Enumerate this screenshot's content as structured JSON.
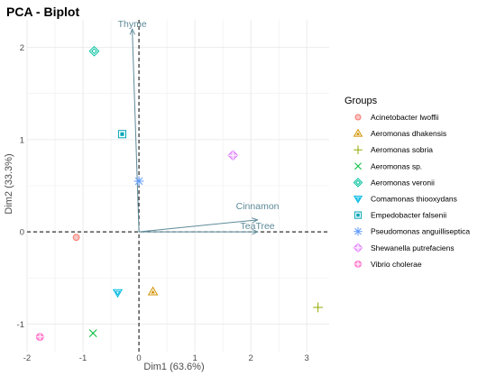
{
  "chart_data": {
    "type": "scatter",
    "title": "PCA - Biplot",
    "xlabel": "Dim1 (63.6%)",
    "ylabel": "Dim2 (33.3%)",
    "xlim": [
      -2.0,
      3.4
    ],
    "ylim": [
      -1.3,
      2.3
    ],
    "x_ticks": [
      -2,
      -1,
      0,
      1,
      2,
      3
    ],
    "y_ticks": [
      -1,
      0,
      1,
      2
    ],
    "grid": true,
    "legend_title": "Groups",
    "legend_position": "right",
    "series": [
      {
        "name": "Acinetobacter lwoffii",
        "color": "#F8766D",
        "shape": "circle-open",
        "points": [
          {
            "x": -1.12,
            "y": -0.06
          }
        ]
      },
      {
        "name": "Aeromonas dhakensis",
        "color": "#D39200",
        "shape": "triangle-dot",
        "points": [
          {
            "x": 0.25,
            "y": -0.65
          }
        ]
      },
      {
        "name": "Aeromonas sobria",
        "color": "#93AA00",
        "shape": "plus",
        "points": [
          {
            "x": 3.2,
            "y": -0.82
          }
        ]
      },
      {
        "name": "Aeromonas sp.",
        "color": "#00BA38",
        "shape": "cross",
        "points": [
          {
            "x": -0.82,
            "y": -1.1
          }
        ]
      },
      {
        "name": "Aeromonas veronii",
        "color": "#00C19F",
        "shape": "diamond-open",
        "points": [
          {
            "x": -0.8,
            "y": 1.96
          }
        ]
      },
      {
        "name": "Comamonas thiooxydans",
        "color": "#00B9E3",
        "shape": "triangle-down",
        "points": [
          {
            "x": -0.38,
            "y": -0.66
          }
        ]
      },
      {
        "name": "Empedobacter falsenii",
        "color": "#00A5B5",
        "shape": "square-cross",
        "points": [
          {
            "x": -0.3,
            "y": 1.06
          }
        ]
      },
      {
        "name": "Pseudomonas anguilliseptica",
        "color": "#619CFF",
        "shape": "asterisk",
        "points": [
          {
            "x": 0.0,
            "y": 0.55
          }
        ]
      },
      {
        "name": "Shewanella putrefaciens",
        "color": "#DB72FB",
        "shape": "diamond-plus",
        "points": [
          {
            "x": 1.68,
            "y": 0.83
          }
        ]
      },
      {
        "name": "Vibrio cholerae",
        "color": "#FF61C3",
        "shape": "circle-plus",
        "points": [
          {
            "x": -1.77,
            "y": -1.14
          }
        ]
      }
    ],
    "variables": [
      {
        "name": "Thyme",
        "x": -0.12,
        "y": 2.2
      },
      {
        "name": "Cinnamon",
        "x": 2.12,
        "y": 0.13
      },
      {
        "name": "TeaTree",
        "x": 2.12,
        "y": 0.0
      }
    ]
  },
  "colors": {
    "arrow": "#5e8a99",
    "grid": "#ebebeb",
    "reference_line": "#000000"
  }
}
